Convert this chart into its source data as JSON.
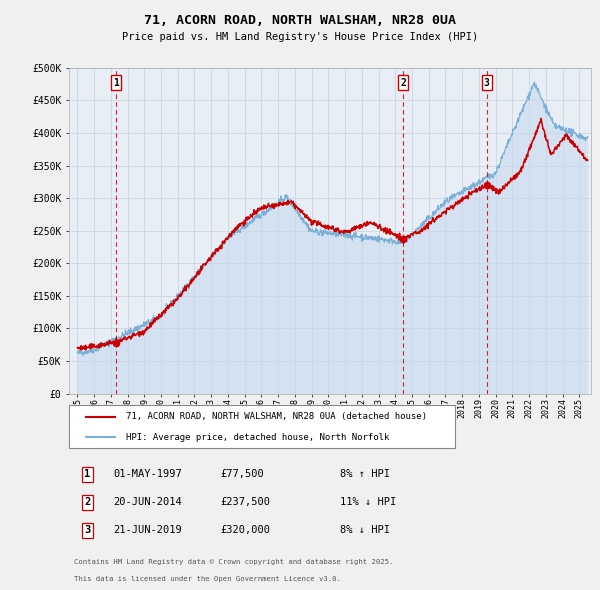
{
  "title": "71, ACORN ROAD, NORTH WALSHAM, NR28 0UA",
  "subtitle": "Price paid vs. HM Land Registry's House Price Index (HPI)",
  "background_color": "#f0f0f0",
  "plot_bg_color": "#e8eef5",
  "grid_color": "#c8d0da",
  "red_line_color": "#cc0000",
  "blue_line_color": "#7ab0d8",
  "blue_fill_color": "#c5d8ec",
  "ylim": [
    0,
    500000
  ],
  "yticks": [
    0,
    50000,
    100000,
    150000,
    200000,
    250000,
    300000,
    350000,
    400000,
    450000,
    500000
  ],
  "ytick_labels": [
    "£0",
    "£50K",
    "£100K",
    "£150K",
    "£200K",
    "£250K",
    "£300K",
    "£350K",
    "£400K",
    "£450K",
    "£500K"
  ],
  "sale_points": [
    {
      "date_num": 1997.33,
      "price": 77500,
      "label": "1"
    },
    {
      "date_num": 2014.47,
      "price": 237500,
      "label": "2"
    },
    {
      "date_num": 2019.47,
      "price": 320000,
      "label": "3"
    }
  ],
  "legend_line1": "71, ACORN ROAD, NORTH WALSHAM, NR28 0UA (detached house)",
  "legend_line2": "HPI: Average price, detached house, North Norfolk",
  "table_rows": [
    {
      "num": "1",
      "date": "01-MAY-1997",
      "price": "£77,500",
      "pct": "8% ↑ HPI"
    },
    {
      "num": "2",
      "date": "20-JUN-2014",
      "price": "£237,500",
      "pct": "11% ↓ HPI"
    },
    {
      "num": "3",
      "date": "21-JUN-2019",
      "price": "£320,000",
      "pct": "8% ↓ HPI"
    }
  ],
  "footnote1": "Contains HM Land Registry data © Crown copyright and database right 2025.",
  "footnote2": "This data is licensed under the Open Government Licence v3.0.",
  "xmin": 1994.5,
  "xmax": 2025.7
}
